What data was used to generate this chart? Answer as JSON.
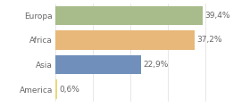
{
  "categories": [
    "Europa",
    "Africa",
    "Asia",
    "America"
  ],
  "values": [
    39.4,
    37.2,
    22.9,
    0.6
  ],
  "labels": [
    "39,4%",
    "37,2%",
    "22,9%",
    "0,6%"
  ],
  "bar_colors": [
    "#a8bb8a",
    "#e8b87a",
    "#7090bb",
    "#e8d87a"
  ],
  "xlim": [
    0,
    44
  ],
  "background_color": "#ffffff",
  "label_fontsize": 6.5,
  "tick_fontsize": 6.5,
  "bar_height": 0.78,
  "grid_color": "#dddddd",
  "text_color": "#666666"
}
